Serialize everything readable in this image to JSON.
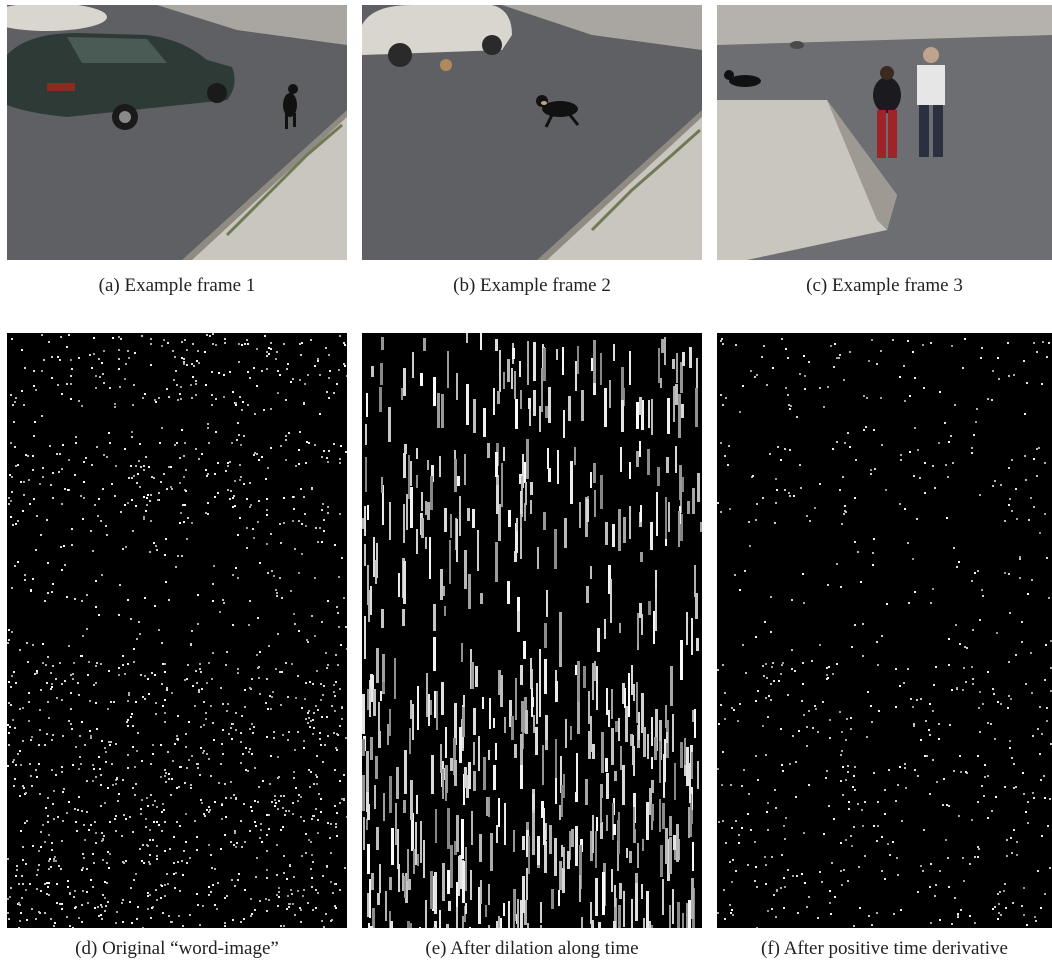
{
  "captions": {
    "a": "(a) Example frame 1",
    "b": "(b) Example frame 2",
    "c": "(c) Example frame 3",
    "d": "(d) Original “word-image”",
    "e": "(e) After dilation along time",
    "f": "(f) After positive time derivative"
  },
  "colors": {
    "background": "#ffffff",
    "road": "#5f6064",
    "sidewalk": "#c9c5bf",
    "car_dark": "#2d3a35",
    "car_light": "#d9d6cf",
    "dog": "#111111",
    "word_image_bg": "#000000",
    "word_image_fg": "#ffffff"
  }
}
